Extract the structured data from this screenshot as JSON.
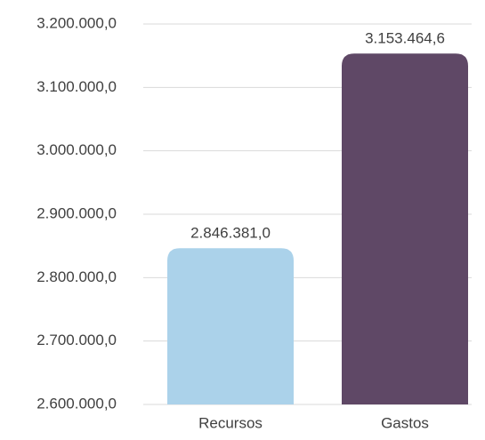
{
  "chart_data": {
    "type": "bar",
    "categories": [
      "Recursos",
      "Gastos"
    ],
    "values": [
      2846381.0,
      3153464.6
    ],
    "value_labels": [
      "2.846.381,0",
      "3.153.464,6"
    ],
    "colors": [
      "#abd2ea",
      "#5f4866"
    ],
    "ylim": [
      2600000,
      3200000
    ],
    "yticks": [
      {
        "value": 2600000,
        "label": "2.600.000,0"
      },
      {
        "value": 2700000,
        "label": "2.700.000,0"
      },
      {
        "value": 2800000,
        "label": "2.800.000,0"
      },
      {
        "value": 2900000,
        "label": "2.900.000,0"
      },
      {
        "value": 3000000,
        "label": "3.000.000,0"
      },
      {
        "value": 3100000,
        "label": "3.100.000,0"
      },
      {
        "value": 3200000,
        "label": "3.200.000,0"
      }
    ],
    "grid": true
  }
}
